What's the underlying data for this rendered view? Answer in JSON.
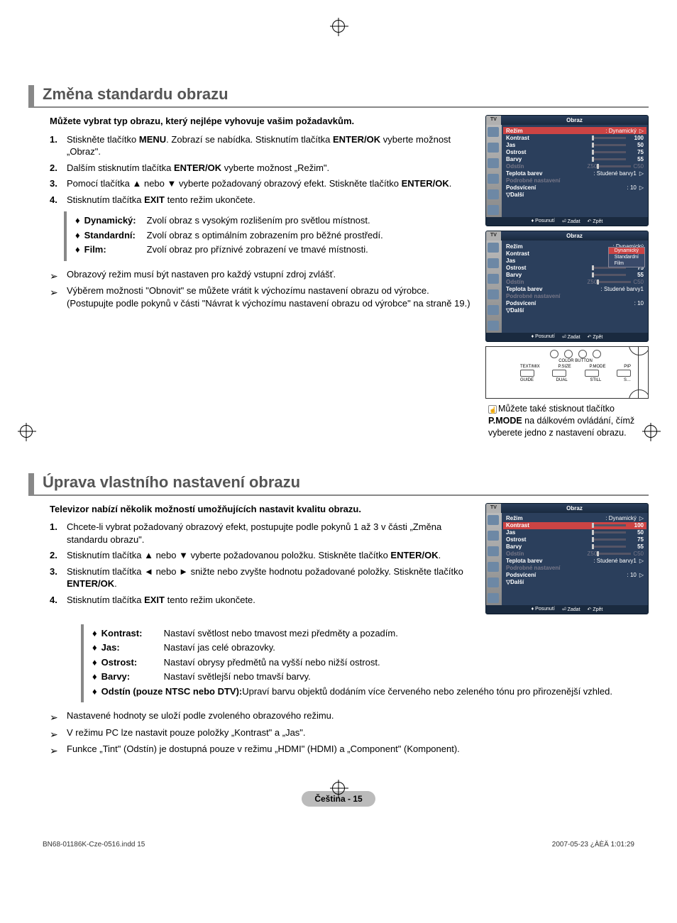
{
  "section1": {
    "title": "Změna standardu obrazu",
    "intro": "Můžete vybrat typ obrazu, který nejlépe vyhovuje vašim požadavkům.",
    "steps": [
      "Stiskněte tlačítko <b>MENU</b>. Zobrazí se nabídka. Stisknutím tlačítka <b>ENTER/OK</b> vyberte možnost „Obraz\".",
      "Dalším stisknutím tlačítka <b>ENTER/OK</b> vyberte možnost „Režim\".",
      "Pomocí tlačítka ▲ nebo ▼ vyberte požadovaný obrazový efekt. Stiskněte tlačítko <b>ENTER/OK</b>.",
      "Stisknutím tlačítka <b>EXIT</b> tento režim ukončete."
    ],
    "defs": [
      {
        "term": "Dynamický:",
        "desc": "Zvolí obraz s vysokým rozlišením pro světlou místnost."
      },
      {
        "term": "Standardní:",
        "desc": "Zvolí obraz s optimálním zobrazením pro běžné prostředí."
      },
      {
        "term": "Film:",
        "desc": "Zvolí obraz pro příznivé zobrazení ve tmavé místnosti."
      }
    ],
    "notes": [
      "Obrazový režim musí být nastaven pro každý vstupní zdroj zvlášť.",
      "Výběrem možnosti \"Obnovit\" se můžete vrátit k výchozímu nastavení obrazu od výrobce. (Postupujte podle pokynů v části \"Návrat k výchozímu nastavení obrazu od výrobce\" na straně 19.)"
    ],
    "tip": "Můžete také stisknout tlačítko <b>P.MODE</b> na dálkovém ovládání, čímž vyberete jedno z nastavení obrazu."
  },
  "section2": {
    "title": "Úprava vlastního nastavení obrazu",
    "intro": "Televizor nabízí několik možností umožňujících nastavit kvalitu obrazu.",
    "steps": [
      "Chcete-li vybrat požadovaný obrazový efekt, postupujte podle pokynů 1 až 3 v části „Změna standardu obrazu\".",
      "Stisknutím tlačítka ▲ nebo ▼ vyberte požadovanou položku. Stiskněte tlačítko <b>ENTER/OK</b>.",
      "Stisknutím tlačítka ◄ nebo ► snižte nebo zvyšte hodnotu požadované položky. Stiskněte tlačítko <b>ENTER/OK</b>.",
      "Stisknutím tlačítka <b>EXIT</b> tento režim ukončete."
    ],
    "defs": [
      {
        "term": "Kontrast:",
        "desc": "Nastaví světlost nebo tmavost mezi předměty a pozadím."
      },
      {
        "term": "Jas:",
        "desc": "Nastaví jas celé obrazovky."
      },
      {
        "term": "Ostrost:",
        "desc": "Nastaví obrysy předmětů na vyšší nebo nižší ostrost."
      },
      {
        "term": "Barvy:",
        "desc": "Nastaví světlejší nebo tmavší barvy."
      },
      {
        "term": "Odstín (pouze NTSC nebo DTV):",
        "desc": "Upraví barvu objektů dodáním více červeného nebo zeleného tónu pro přirozenější vzhled."
      }
    ],
    "notes": [
      "Nastavené hodnoty se uloží podle zvoleného obrazového režimu.",
      "V režimu PC lze nastavit pouze položky „Kontrast\" a „Jas\".",
      "Funkce „Tint\" (Odstín) je dostupná pouze v režimu „HDMI\" (HDMI) a „Component\" (Komponent)."
    ]
  },
  "osd": {
    "tv": "TV",
    "title": "Obraz",
    "rows": {
      "mode": "Režim",
      "mode_val": ": Dynamický",
      "contrast": "Kontrast",
      "brightness": "Jas",
      "sharpness": "Ostrost",
      "color": "Barvy",
      "tint": "Odstín",
      "tint_l": "Z50",
      "tint_r": "C50",
      "ctemp": "Teplota barev",
      "ctemp_val": ": Studené barvy1",
      "detail": "Podrobné nastavení",
      "backlight": "Podsvícení",
      "backlight_val": ": 10",
      "more": "▽Další"
    },
    "values": {
      "contrast": "100",
      "brightness": "50",
      "sharpness": "75",
      "color": "55"
    },
    "footer": {
      "move": "Posunutí",
      "enter": "Zadat",
      "back": "Zpět"
    },
    "popup": {
      "dynamic": "Dynamický",
      "standard": "Standardní",
      "film": "Film"
    }
  },
  "remote": {
    "color": "COLOR BUTTON",
    "labels1": [
      "TEXT/MIX",
      "P.SIZE",
      "P.MODE",
      "PIP"
    ],
    "labels2": [
      "GUIDE",
      "DUAL",
      "STILL",
      "S…"
    ]
  },
  "page": {
    "label": "Čeština - 15"
  },
  "docfooter": {
    "left": "BN68-01186K-Cze-0516.indd   15",
    "right": "2007-05-23   ¿ÀÈÄ 1:01:29"
  }
}
